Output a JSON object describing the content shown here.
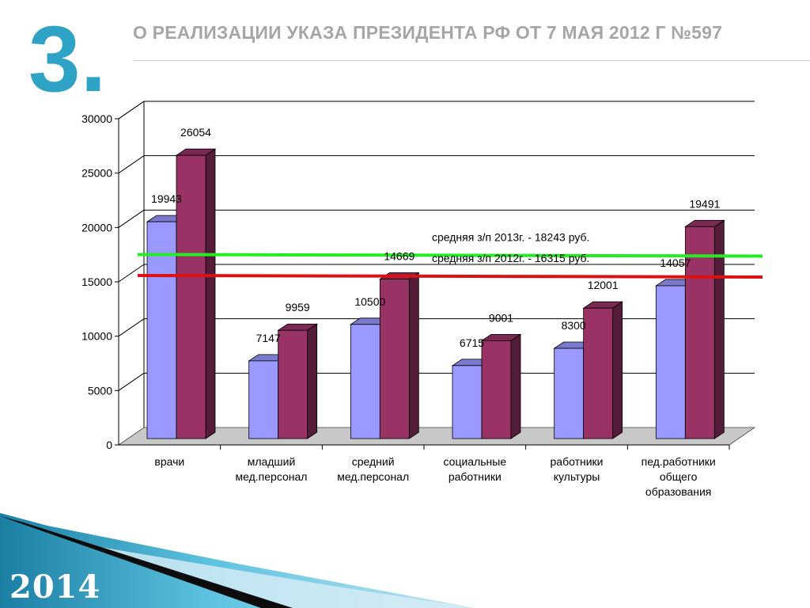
{
  "slide": {
    "number": "3.",
    "title": "О РЕАЛИЗАЦИИ УКАЗА ПРЕЗИДЕНТА РФ ОТ 7 МАЯ 2012 Г №597",
    "year": "2014"
  },
  "colors": {
    "accent": "#2ea3c5",
    "series_2012": "#9999ff",
    "series_2013": "#993366",
    "line_2013": "#22ee22",
    "line_2012": "#dd1111"
  },
  "chart_data": {
    "type": "bar",
    "categories": [
      [
        "врачи"
      ],
      [
        "младший",
        "мед.персонал"
      ],
      [
        "средний",
        "мед.персонал"
      ],
      [
        "социальные",
        "работники"
      ],
      [
        "работники",
        "культуры"
      ],
      [
        "пед.работники",
        "общего",
        "образования"
      ]
    ],
    "series": [
      {
        "values": [
          19943,
          7147,
          10500,
          6715,
          8300,
          14057
        ]
      },
      {
        "values": [
          26054,
          9959,
          14669,
          9001,
          12001,
          19491
        ]
      }
    ],
    "reference_lines": [
      {
        "label": "средняя з/п 2013г. - 18243 руб.",
        "value": 18243
      },
      {
        "label": "средняя з/п 2012г. - 16315 руб.",
        "value": 16315
      }
    ],
    "ylim": [
      0,
      30000
    ],
    "yticks": [
      "0",
      "5000",
      "10000",
      "15000",
      "20000",
      "25000",
      "30000"
    ],
    "grid": true,
    "three_d": true
  }
}
